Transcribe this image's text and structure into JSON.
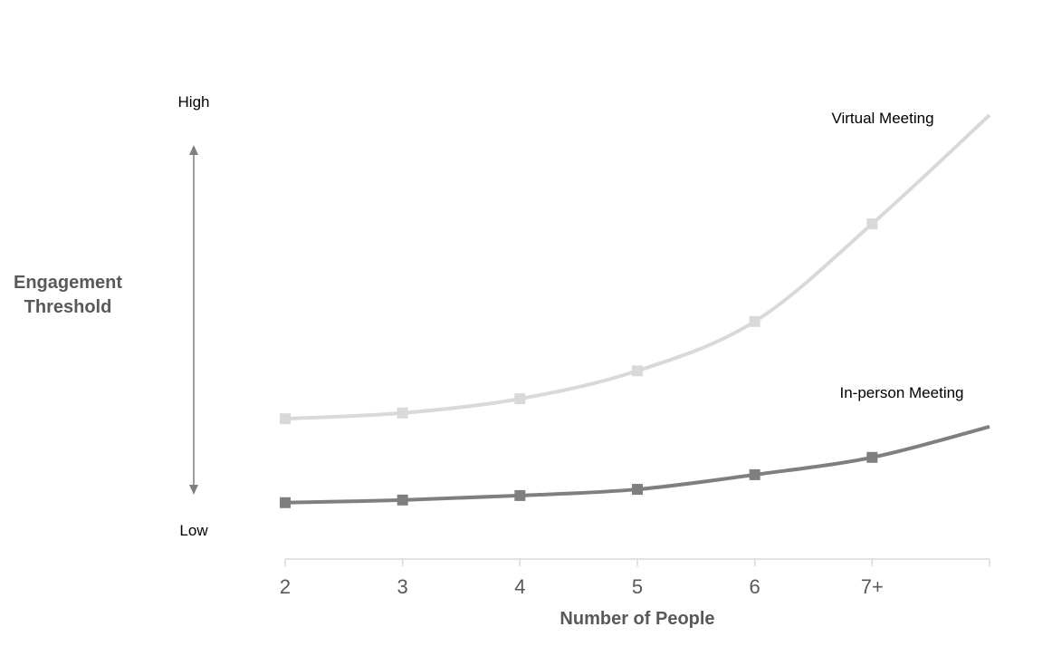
{
  "chart_data": {
    "type": "line",
    "title": "",
    "xlabel": "Number of People",
    "ylabel": "Engagement Threshold",
    "y_high_label": "High",
    "y_low_label": "Low",
    "y_axis_numeric": false,
    "ylim": [
      0,
      100
    ],
    "grid": false,
    "legend": "inline labels at line ends",
    "categories": [
      "2",
      "3",
      "4",
      "5",
      "6",
      "7+",
      ""
    ],
    "series": [
      {
        "name": "Virtual Meeting",
        "color": "#d9d9d9",
        "marker": "square",
        "values": [
          31.6,
          32.9,
          36.1,
          42.4,
          53.5,
          75.5,
          100
        ]
      },
      {
        "name": "In-person Meeting",
        "color": "#7f7f7f",
        "marker": "square",
        "values": [
          12.7,
          13.3,
          14.3,
          15.7,
          19.0,
          22.9,
          29.8
        ]
      }
    ]
  }
}
